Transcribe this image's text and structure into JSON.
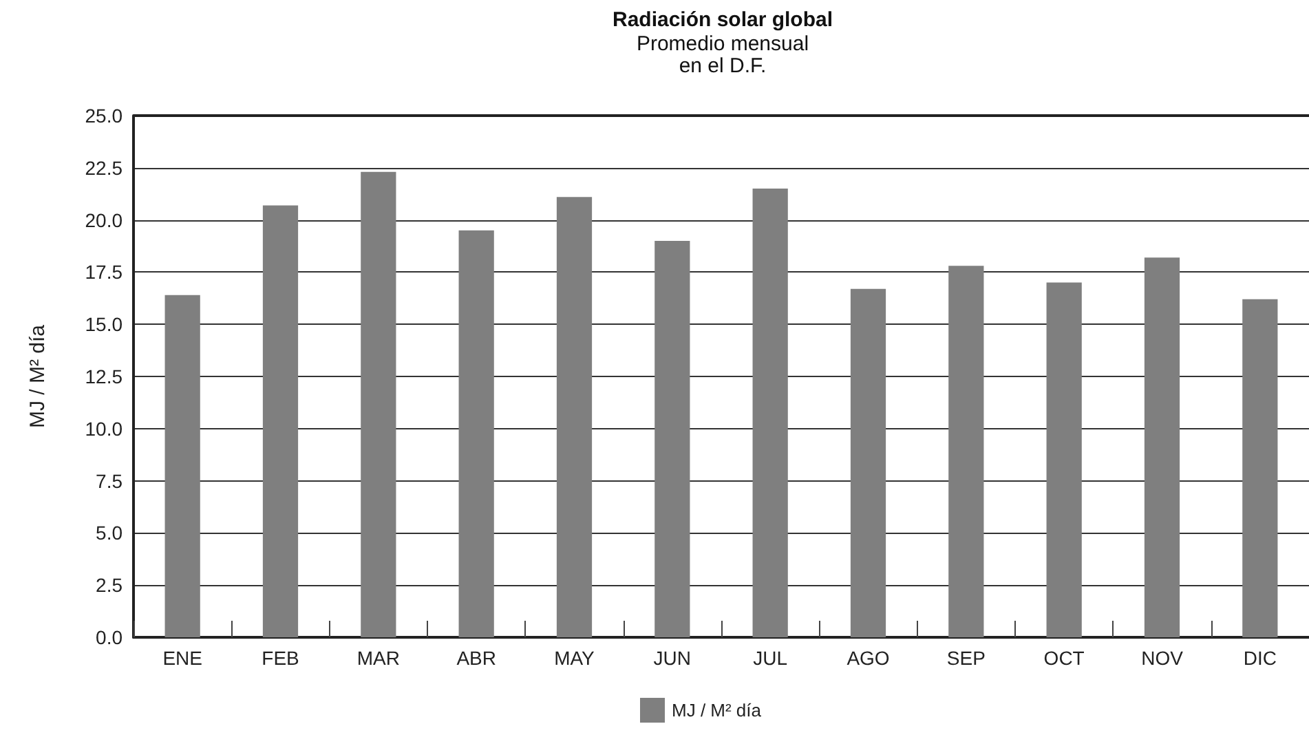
{
  "chart_data": {
    "type": "bar",
    "title": "Radiación solar global",
    "subtitle": "Promedio mensual\nen el D.F.",
    "ylabel": "MJ / M² día",
    "categories": [
      "ENE",
      "FEB",
      "MAR",
      "ABR",
      "MAY",
      "JUN",
      "JUL",
      "AGO",
      "SEP",
      "OCT",
      "NOV",
      "DIC"
    ],
    "series": [
      {
        "name": "MJ / M² día",
        "color": "#7f7f7f",
        "values": [
          16.4,
          20.7,
          22.3,
          19.5,
          21.1,
          19.0,
          21.5,
          16.7,
          17.8,
          17.0,
          18.2,
          16.2
        ]
      }
    ],
    "ylim": [
      0,
      25
    ],
    "yticks": [
      {
        "value": 0,
        "label": "0.0"
      },
      {
        "value": 2.5,
        "label": "2.5"
      },
      {
        "value": 5,
        "label": "5.0"
      },
      {
        "value": 7.5,
        "label": "7.5"
      },
      {
        "value": 10,
        "label": "10.0"
      },
      {
        "value": 12.5,
        "label": "12.5"
      },
      {
        "value": 15,
        "label": "15.0"
      },
      {
        "value": 17.5,
        "label": "17.5"
      },
      {
        "value": 20,
        "label": "20.0"
      },
      {
        "value": 22.5,
        "label": "22.5"
      },
      {
        "value": 25,
        "label": "25.0"
      }
    ],
    "grid": "y",
    "legend": "bottom"
  }
}
